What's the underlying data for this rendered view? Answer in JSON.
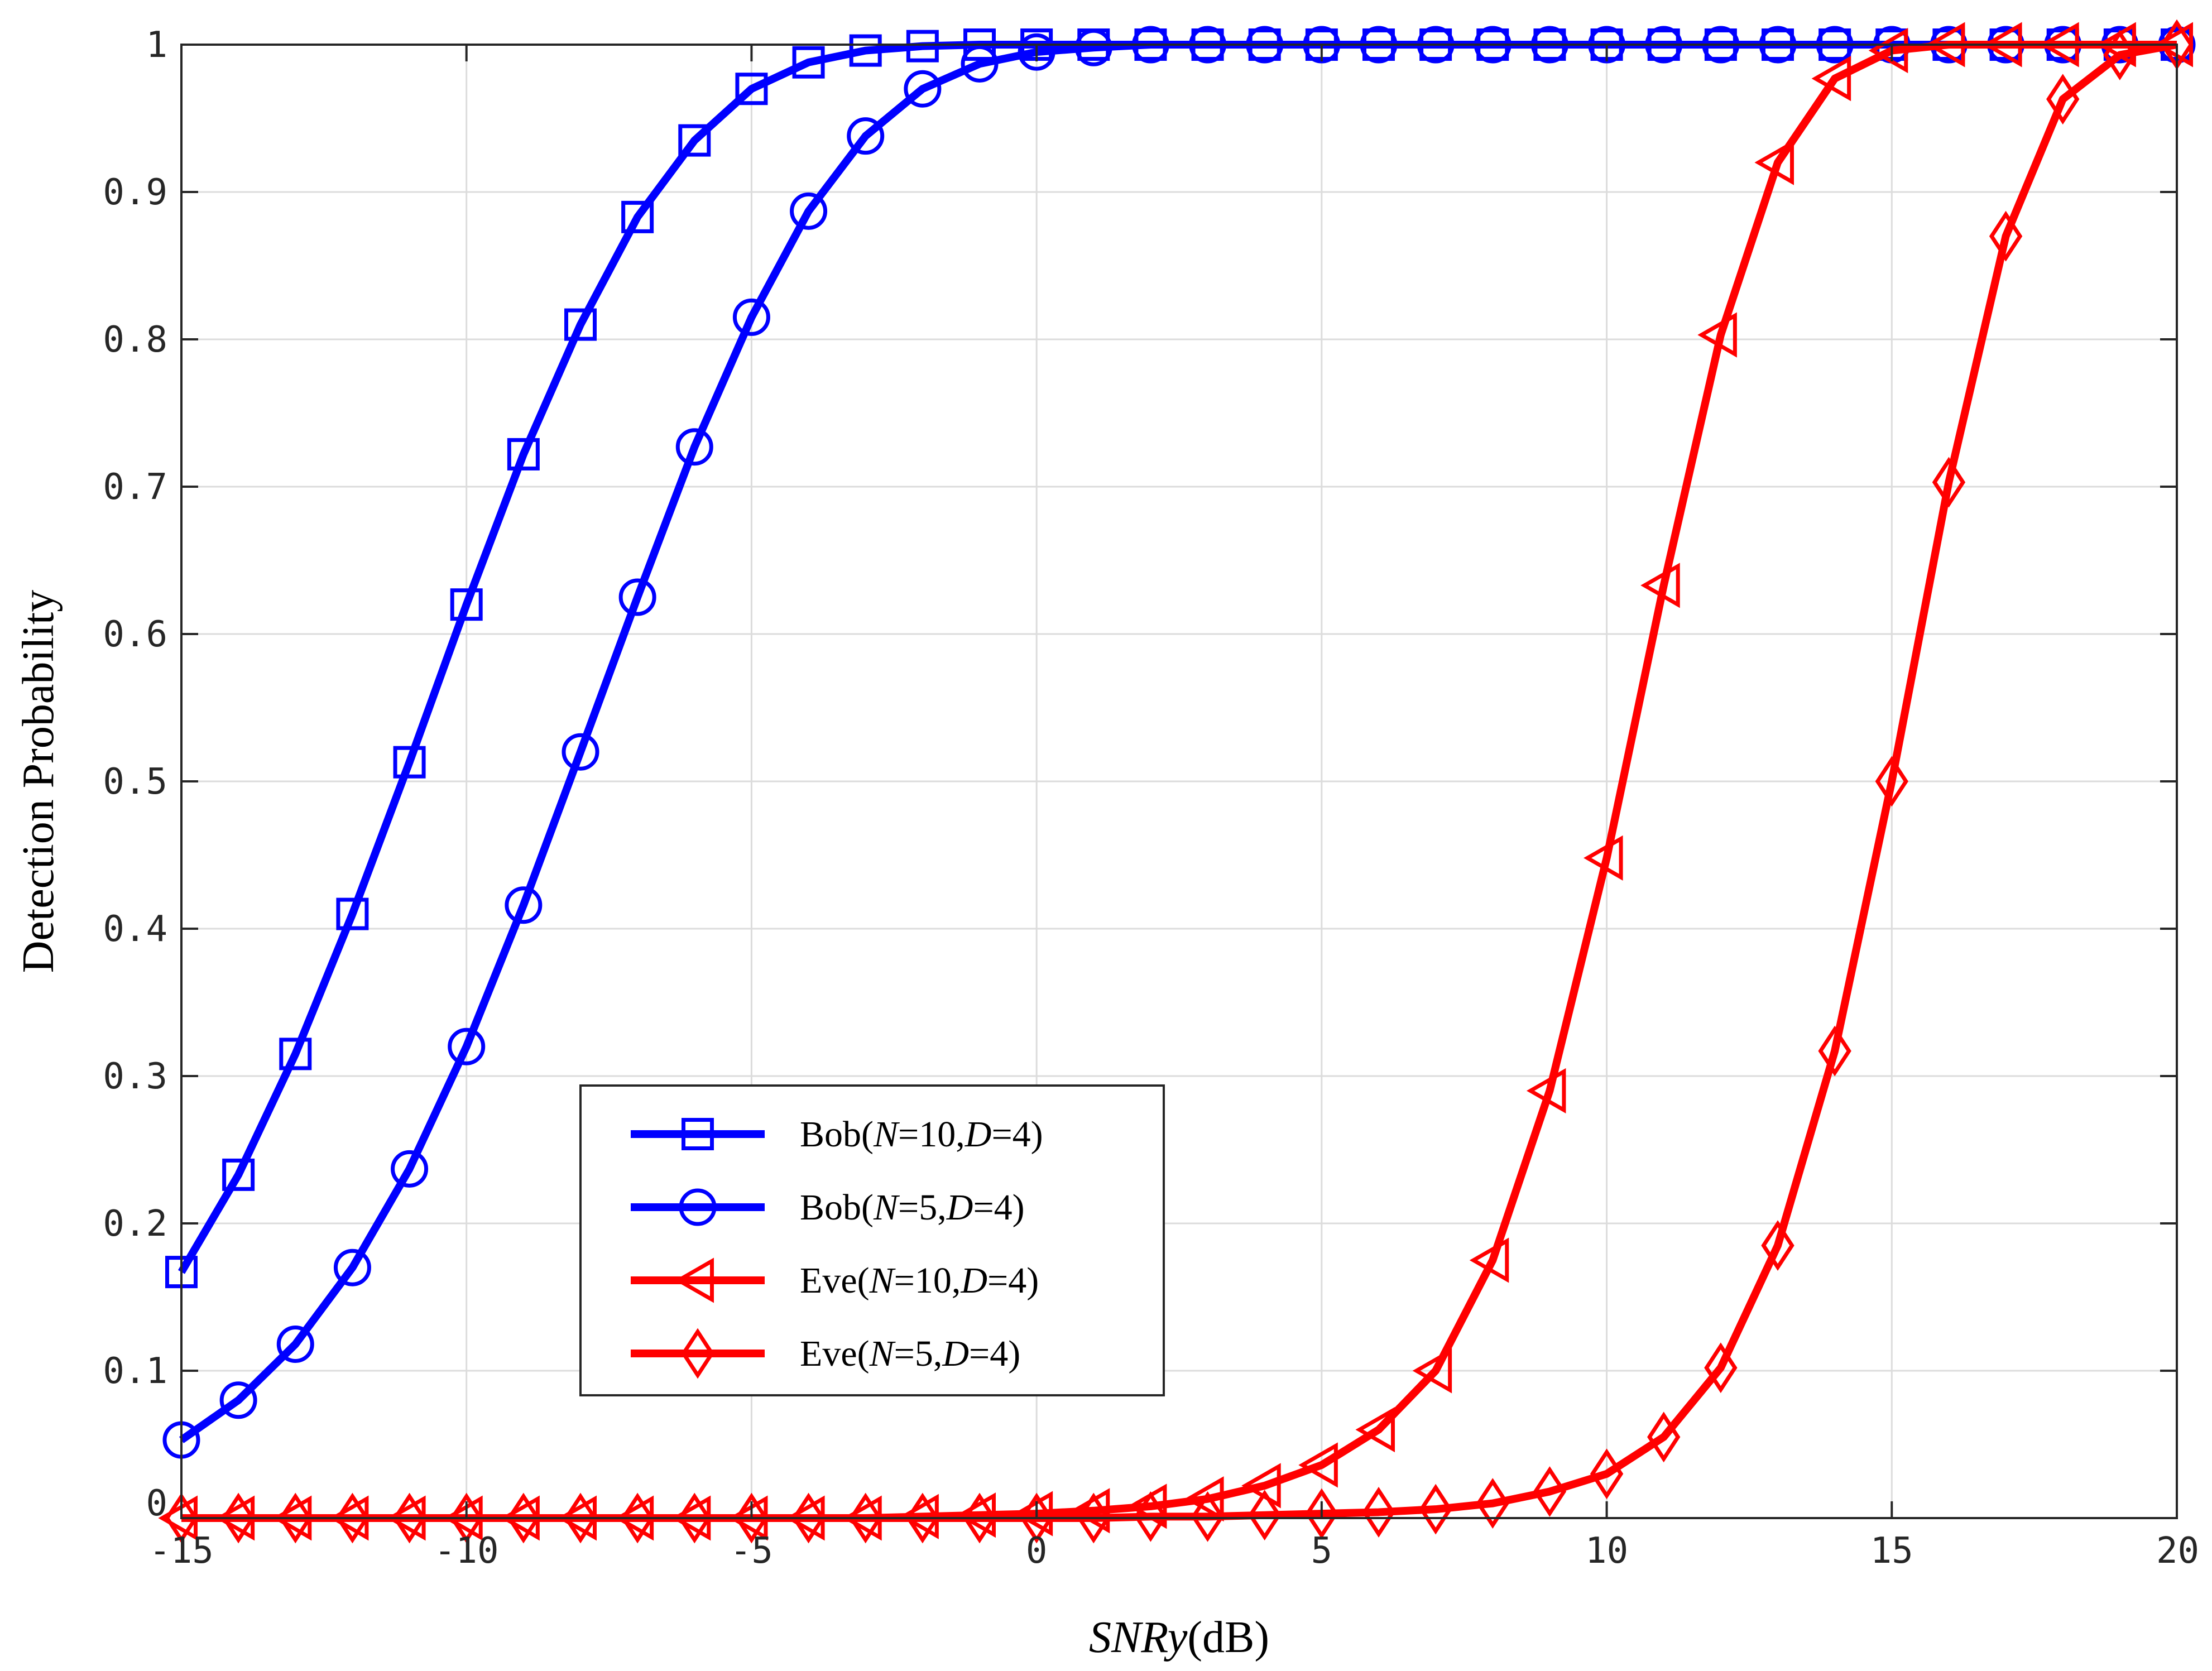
{
  "chart_data": {
    "type": "line",
    "xlabel_italic": "SNRy",
    "xlabel_unit": "(dB)",
    "ylabel": "Detection Probability",
    "xlim": [
      -15,
      20
    ],
    "ylim": [
      0,
      1
    ],
    "grid": true,
    "legend_position": "lower-left-center",
    "x_ticks": [
      -15,
      -10,
      -5,
      0,
      5,
      10,
      15,
      20
    ],
    "x_tick_labels": [
      "-15",
      "-10",
      "-5",
      "0",
      "5",
      "10",
      "15",
      "20"
    ],
    "y_ticks": [
      0,
      0.1,
      0.2,
      0.3,
      0.4,
      0.5,
      0.6,
      0.7,
      0.8,
      0.9,
      1
    ],
    "y_tick_labels": [
      "0",
      "0.1",
      "0.2",
      "0.3",
      "0.4",
      "0.5",
      "0.6",
      "0.7",
      "0.8",
      "0.9",
      "1"
    ],
    "x": [
      -15,
      -14,
      -13,
      -12,
      -11,
      -10,
      -9,
      -8,
      -7,
      -6,
      -5,
      -4,
      -3,
      -2,
      -1,
      0,
      1,
      2,
      3,
      4,
      5,
      6,
      7,
      8,
      9,
      10,
      11,
      12,
      13,
      14,
      15,
      16,
      17,
      18,
      19,
      20
    ],
    "series": [
      {
        "name": "Bob(N=10,D=4)",
        "legend": {
          "prefix": "Bob(",
          "n_label": "N",
          "n_value": "=10,",
          "d_label": "D",
          "d_value": "=4)"
        },
        "color": "#0000FF",
        "marker": "square",
        "values": [
          0.167,
          0.233,
          0.315,
          0.41,
          0.513,
          0.62,
          0.722,
          0.81,
          0.883,
          0.935,
          0.97,
          0.988,
          0.996,
          0.999,
          1,
          1,
          1,
          1,
          1,
          1,
          1,
          1,
          1,
          1,
          1,
          1,
          1,
          1,
          1,
          1,
          1,
          1,
          1,
          1,
          1,
          1
        ]
      },
      {
        "name": "Bob(N=5,D=4)",
        "legend": {
          "prefix": "Bob(",
          "n_label": "N",
          "n_value": "=5,",
          "d_label": "D",
          "d_value": "=4)"
        },
        "color": "#0000FF",
        "marker": "circle",
        "values": [
          0.053,
          0.08,
          0.118,
          0.17,
          0.237,
          0.32,
          0.416,
          0.52,
          0.625,
          0.727,
          0.815,
          0.887,
          0.938,
          0.97,
          0.987,
          0.995,
          0.998,
          1,
          1,
          1,
          1,
          1,
          1,
          1,
          1,
          1,
          1,
          1,
          1,
          1,
          1,
          1,
          1,
          1,
          1,
          1
        ]
      },
      {
        "name": "Eve(N=10,D=4)",
        "legend": {
          "prefix": "Eve(",
          "n_label": "N",
          "n_value": "=10,",
          "d_label": "D",
          "d_value": "=4)"
        },
        "color": "#FF0000",
        "marker": "triangle-left",
        "values": [
          0,
          0,
          0,
          0,
          0,
          0,
          0,
          0,
          0,
          0,
          0,
          0,
          0,
          0.001,
          0.002,
          0.003,
          0.005,
          0.008,
          0.013,
          0.022,
          0.036,
          0.06,
          0.1,
          0.175,
          0.29,
          0.448,
          0.633,
          0.803,
          0.92,
          0.977,
          0.996,
          1,
          1,
          1,
          1,
          1
        ]
      },
      {
        "name": "Eve(N=5,D=4)",
        "legend": {
          "prefix": "Eve(",
          "n_label": "N",
          "n_value": "=5,",
          "d_label": "D",
          "d_value": "=4)"
        },
        "color": "#FF0000",
        "marker": "diamond",
        "values": [
          0,
          0,
          0,
          0,
          0,
          0,
          0,
          0,
          0,
          0,
          0,
          0,
          0,
          0,
          0,
          0,
          0,
          0.001,
          0.001,
          0.002,
          0.003,
          0.004,
          0.006,
          0.01,
          0.018,
          0.03,
          0.055,
          0.102,
          0.185,
          0.317,
          0.5,
          0.703,
          0.87,
          0.963,
          0.993,
          1
        ]
      }
    ]
  }
}
